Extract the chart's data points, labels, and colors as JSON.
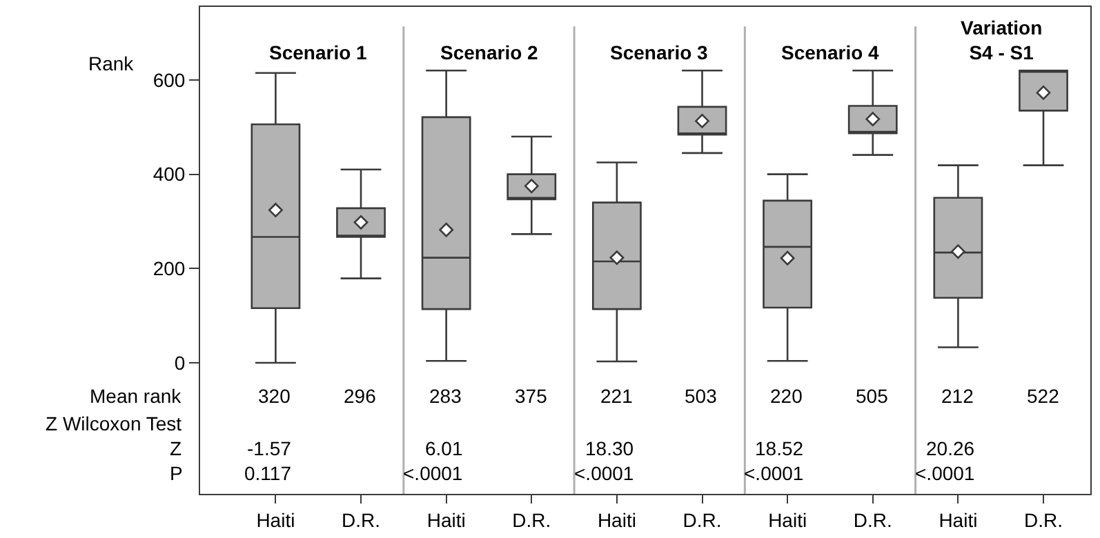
{
  "chart_data": {
    "type": "box",
    "ylabel": "Rank",
    "categories": [
      "Haiti",
      "D.R.",
      "Haiti",
      "D.R.",
      "Haiti",
      "D.R.",
      "Haiti",
      "D.R.",
      "Haiti",
      "D.R."
    ],
    "series": [
      {
        "color": "#b3b3b3",
        "marker": "diamond",
        "boxes": [
          {
            "low": 0,
            "q1": 116,
            "median": 267,
            "q3": 506,
            "high": 615,
            "mean": 324
          },
          {
            "low": 179,
            "q1": 267,
            "median": 267,
            "q3": 328,
            "high": 410,
            "mean": 298
          },
          {
            "low": 4,
            "q1": 114,
            "median": 223,
            "q3": 521,
            "high": 620,
            "mean": 282
          },
          {
            "low": 273,
            "q1": 347,
            "median": 347,
            "q3": 400,
            "high": 480,
            "mean": 375
          },
          {
            "low": 3,
            "q1": 114,
            "median": 215,
            "q3": 340,
            "high": 425,
            "mean": 223
          },
          {
            "low": 445,
            "q1": 484,
            "median": 484,
            "q3": 543,
            "high": 620,
            "mean": 513
          },
          {
            "low": 4,
            "q1": 117,
            "median": 246,
            "q3": 344,
            "high": 400,
            "mean": 222
          },
          {
            "low": 441,
            "q1": 487,
            "median": 487,
            "q3": 545,
            "high": 620,
            "mean": 517
          },
          {
            "low": 33,
            "q1": 138,
            "median": 234,
            "q3": 350,
            "high": 419,
            "mean": 236
          },
          {
            "low": 419,
            "q1": 535,
            "median": 620,
            "q3": 620,
            "high": 620,
            "mean": 573
          }
        ]
      }
    ],
    "ylim": [
      -278,
      755
    ],
    "yticks": [
      0,
      200,
      400,
      600
    ],
    "annotations": [
      "Scenario 1",
      "Scenario 2",
      "Scenario 3",
      "Scenario 4",
      "Variation\nS4 - S1",
      "Mean rank",
      "Z Wilcoxon Test",
      "Z",
      "P",
      "320",
      "296",
      "283",
      "375",
      "221",
      "503",
      "220",
      "505",
      "212",
      "522",
      "-1.57",
      "6.01",
      "18.30",
      "18.52",
      "20.26",
      "0.117",
      "<.0001",
      "<.0001",
      "<.0001",
      "<.0001"
    ]
  }
}
